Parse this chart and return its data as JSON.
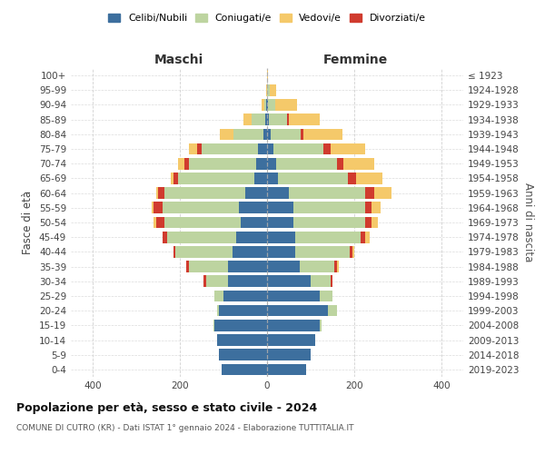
{
  "age_groups": [
    "0-4",
    "5-9",
    "10-14",
    "15-19",
    "20-24",
    "25-29",
    "30-34",
    "35-39",
    "40-44",
    "45-49",
    "50-54",
    "55-59",
    "60-64",
    "65-69",
    "70-74",
    "75-79",
    "80-84",
    "85-89",
    "90-94",
    "95-99",
    "100+"
  ],
  "birth_years": [
    "2019-2023",
    "2014-2018",
    "2009-2013",
    "2004-2008",
    "1999-2003",
    "1994-1998",
    "1989-1993",
    "1984-1988",
    "1979-1983",
    "1974-1978",
    "1969-1973",
    "1964-1968",
    "1959-1963",
    "1954-1958",
    "1949-1953",
    "1944-1948",
    "1939-1943",
    "1934-1938",
    "1929-1933",
    "1924-1928",
    "≤ 1923"
  ],
  "colors": {
    "celibi": "#3d6f9e",
    "coniugati": "#bdd4a0",
    "vedovi": "#f5c96a",
    "divorziati": "#d03b2e"
  },
  "males": {
    "celibi": [
      105,
      110,
      115,
      120,
      110,
      100,
      90,
      90,
      80,
      70,
      60,
      65,
      50,
      30,
      25,
      20,
      8,
      5,
      2,
      1,
      0
    ],
    "coniugati": [
      0,
      0,
      0,
      2,
      5,
      20,
      50,
      90,
      130,
      160,
      175,
      175,
      185,
      175,
      155,
      130,
      70,
      30,
      5,
      0,
      0
    ],
    "vedovi": [
      0,
      0,
      0,
      0,
      0,
      0,
      0,
      0,
      0,
      0,
      5,
      5,
      5,
      5,
      15,
      20,
      30,
      20,
      5,
      1,
      0
    ],
    "divorziati": [
      0,
      0,
      0,
      0,
      0,
      0,
      5,
      5,
      5,
      10,
      20,
      20,
      15,
      10,
      10,
      10,
      0,
      0,
      0,
      0,
      0
    ]
  },
  "females": {
    "celibi": [
      90,
      100,
      110,
      120,
      140,
      120,
      100,
      75,
      65,
      65,
      60,
      60,
      50,
      25,
      20,
      15,
      8,
      5,
      3,
      1,
      0
    ],
    "coniugati": [
      0,
      0,
      0,
      5,
      20,
      30,
      45,
      80,
      125,
      150,
      165,
      165,
      175,
      160,
      140,
      115,
      70,
      40,
      15,
      5,
      0
    ],
    "vedovi": [
      0,
      0,
      0,
      0,
      0,
      0,
      0,
      5,
      5,
      10,
      15,
      20,
      40,
      60,
      70,
      80,
      90,
      70,
      50,
      15,
      2
    ],
    "divorziati": [
      0,
      0,
      0,
      0,
      0,
      0,
      5,
      5,
      5,
      10,
      15,
      15,
      20,
      20,
      15,
      15,
      5,
      5,
      0,
      0,
      0
    ]
  },
  "xlim": 450,
  "title": "Popolazione per età, sesso e stato civile - 2024",
  "subtitle": "COMUNE DI CUTRO (KR) - Dati ISTAT 1° gennaio 2024 - Elaborazione TUTTITALIA.IT",
  "xlabel_left": "Maschi",
  "xlabel_right": "Femmine",
  "ylabel_left": "Fasce di età",
  "ylabel_right": "Anni di nascita",
  "legend_labels": [
    "Celibi/Nubili",
    "Coniugati/e",
    "Vedovi/e",
    "Divorziati/e"
  ],
  "bg_color": "#ffffff",
  "grid_color": "#cccccc"
}
